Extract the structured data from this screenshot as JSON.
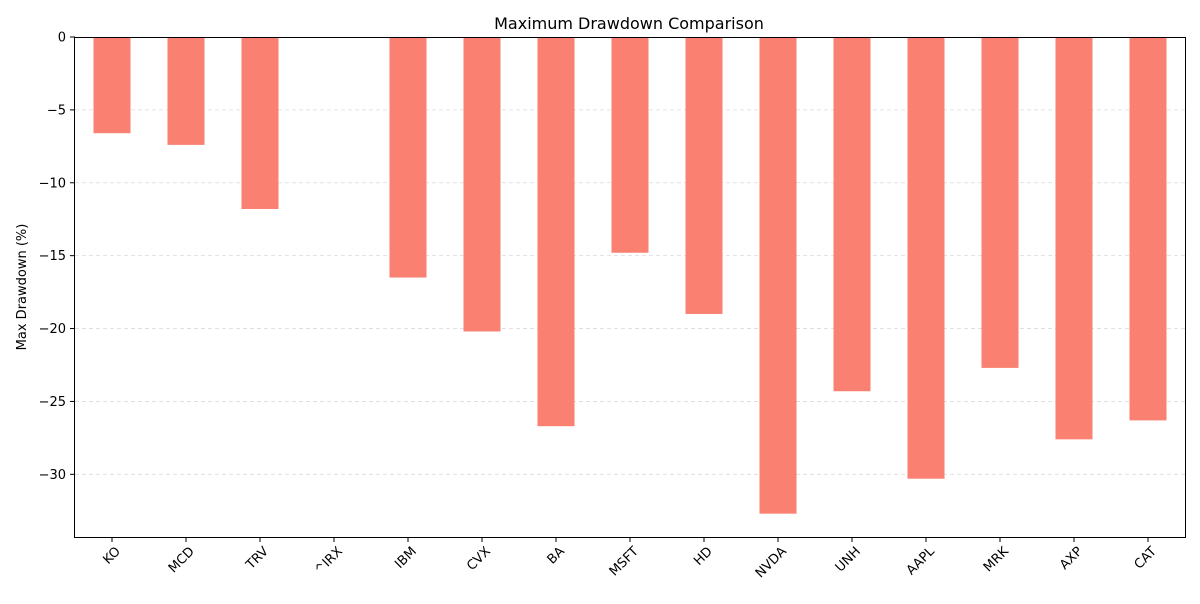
{
  "chart_data": {
    "type": "bar",
    "title": "Maximum Drawdown Comparison",
    "xlabel": "",
    "ylabel": "Max Drawdown (%)",
    "categories": [
      "KO",
      "MCD",
      "TRV",
      "^IRX",
      "IBM",
      "CVX",
      "BA",
      "MSFT",
      "HD",
      "NVDA",
      "UNH",
      "AAPL",
      "MRK",
      "AXP",
      "CAT"
    ],
    "values": [
      -6.6,
      -7.4,
      -11.8,
      0,
      -16.5,
      -20.2,
      -26.7,
      -14.8,
      -19.0,
      -32.7,
      -24.3,
      -30.3,
      -22.7,
      -27.6,
      -26.3
    ],
    "ylim": [
      -34.3,
      0
    ],
    "yticks": [
      0,
      -5,
      -10,
      -15,
      -20,
      -25,
      -30
    ],
    "ytick_labels": [
      "0",
      "−5",
      "−10",
      "−15",
      "−20",
      "−25",
      "−30"
    ],
    "grid": true,
    "bar_color": "#fa8072"
  }
}
